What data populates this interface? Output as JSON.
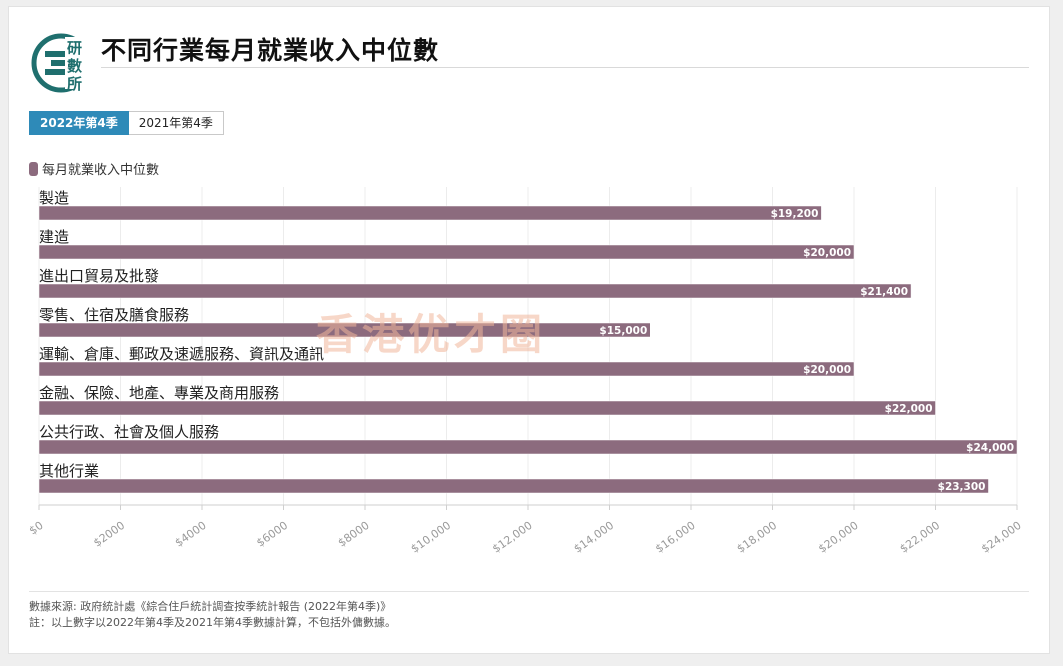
{
  "title": "不同行業每月就業收入中位數",
  "logo": {
    "line1": "研",
    "line2": "數",
    "line3": "所",
    "icon": "logo-icon"
  },
  "tabs": [
    {
      "label": "2022年第4季",
      "active": true
    },
    {
      "label": "2021年第4季",
      "active": false
    }
  ],
  "legend": {
    "label": "每月就業收入中位數",
    "color": "#8c6b7e"
  },
  "watermark": "香港优才圈",
  "chart_data": {
    "type": "bar",
    "orientation": "horizontal",
    "categories": [
      "製造",
      "建造",
      "進出口貿易及批發",
      "零售、住宿及膳食服務",
      "運輸、倉庫、郵政及速遞服務、資訊及通訊",
      "金融、保險、地產、專業及商用服務",
      "公共行政、社會及個人服務",
      "其他行業"
    ],
    "series": [
      {
        "name": "每月就業收入中位數",
        "values": [
          19200,
          20000,
          21400,
          15000,
          20000,
          22000,
          24000,
          23300
        ],
        "color": "#8c6b7e"
      }
    ],
    "data_labels": [
      "$19,200",
      "$20,000",
      "$21,400",
      "$15,000",
      "$20,000",
      "$22,000",
      "$24,000",
      "$23,300"
    ],
    "x_ticks": [
      "$0",
      "$2000",
      "$4000",
      "$6000",
      "$8000",
      "$10,000",
      "$12,000",
      "$14,000",
      "$16,000",
      "$18,000",
      "$20,000",
      "$22,000",
      "$24,000"
    ],
    "xlim": [
      0,
      24000
    ],
    "grid": true
  },
  "footnotes": {
    "source": "數據來源: 政府統計處《綜合住戶統計調查按季統計報告 (2022年第4季)》",
    "note": "註：以上數字以2022年第4季及2021年第4季數據計算，不包括外傭數據。"
  }
}
